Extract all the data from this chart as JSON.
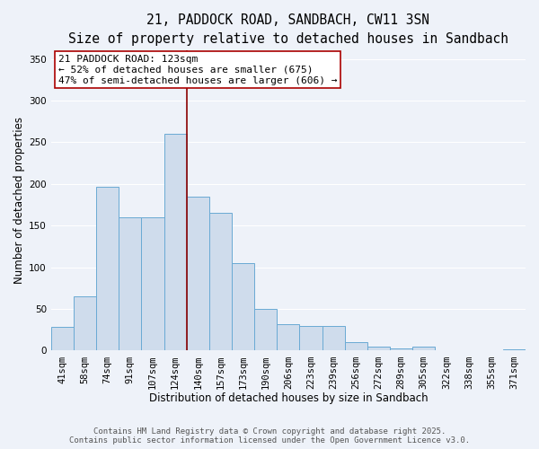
{
  "title_line1": "21, PADDOCK ROAD, SANDBACH, CW11 3SN",
  "title_line2": "Size of property relative to detached houses in Sandbach",
  "xlabel": "Distribution of detached houses by size in Sandbach",
  "ylabel": "Number of detached properties",
  "categories": [
    "41sqm",
    "58sqm",
    "74sqm",
    "91sqm",
    "107sqm",
    "124sqm",
    "140sqm",
    "157sqm",
    "173sqm",
    "190sqm",
    "206sqm",
    "223sqm",
    "239sqm",
    "256sqm",
    "272sqm",
    "289sqm",
    "305sqm",
    "322sqm",
    "338sqm",
    "355sqm",
    "371sqm"
  ],
  "values": [
    28,
    65,
    197,
    160,
    160,
    260,
    185,
    165,
    105,
    50,
    32,
    30,
    30,
    10,
    5,
    3,
    5,
    0,
    0,
    0,
    2
  ],
  "bar_color": "#cfdcec",
  "bar_edge_color": "#6aaad4",
  "annotation_line1": "21 PADDOCK ROAD: 123sqm",
  "annotation_line2": "← 52% of detached houses are smaller (675)",
  "annotation_line3": "47% of semi-detached houses are larger (606) →",
  "vline_x": 5.5,
  "vline_color": "#8b0000",
  "ylim": [
    0,
    360
  ],
  "yticks": [
    0,
    50,
    100,
    150,
    200,
    250,
    300,
    350
  ],
  "background_color": "#eef2f9",
  "grid_color": "#ffffff",
  "annotation_box_facecolor": "#ffffff",
  "annotation_box_edge": "#aa0000",
  "footer_line1": "Contains HM Land Registry data © Crown copyright and database right 2025.",
  "footer_line2": "Contains public sector information licensed under the Open Government Licence v3.0.",
  "title_fontsize": 10.5,
  "subtitle_fontsize": 9.5,
  "axis_label_fontsize": 8.5,
  "tick_fontsize": 7.5,
  "annotation_fontsize": 8,
  "footer_fontsize": 6.5
}
